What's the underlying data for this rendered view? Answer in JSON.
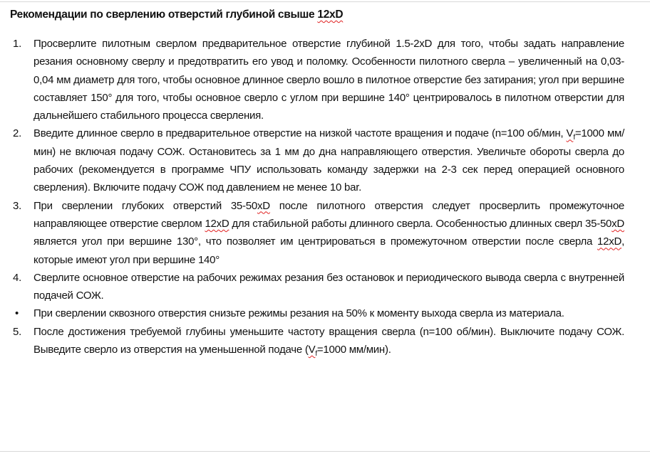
{
  "title": [
    {
      "t": "Рекомендации по сверлению отверстий глубиной свыше "
    },
    {
      "t": "12xD",
      "spell": true
    }
  ],
  "items": [
    {
      "marker": "1.",
      "segments": [
        {
          "t": "Просверлите пилотным сверлом предварительное отверстие глубиной 1.5-2xD для того, чтобы задать направление резания основному сверлу и предотвратить его увод и поломку. Особенности пилотного сверла – увеличенный на 0,03-0,04 мм диаметр для того, чтобы основное длинное сверло вошло в пилотное отверстие без затирания; угол при вершине составляет 150° для того, чтобы основное сверло с углом при вершине 140° центрировалось в пилотном отверстии для дальнейшего стабильного процесса сверления."
        }
      ]
    },
    {
      "marker": "2.",
      "segments": [
        {
          "t": "Введите длинное сверло в предварительное отверстие на низкой частоте вращения и подаче (n=100 об/мин, "
        },
        {
          "t": "V",
          "spell": true
        },
        {
          "t": "f",
          "sub": true
        },
        {
          "t": "=1000 мм/мин) не включая подачу СОЖ. Остановитесь за 1 мм до дна направляющего отверстия. Увеличьте обороты сверла до рабочих (рекомендуется в программе ЧПУ использовать команду задержки на 2-3 сек перед операцией основного сверления). Включите подачу СОЖ под давлением не менее 10 bar."
        }
      ]
    },
    {
      "marker": "3.",
      "segments": [
        {
          "t": "При сверлении глубоких отверстий 35-50"
        },
        {
          "t": "xD",
          "spell": true
        },
        {
          "t": " после пилотного отверстия следует просверлить промежуточное направляющее отверстие сверлом "
        },
        {
          "t": "12xD",
          "spell": true
        },
        {
          "t": " для стабильной работы длинного сверла. Особенностью длинных сверл 35-50"
        },
        {
          "t": "xD",
          "spell": true
        },
        {
          "t": " является угол при вершине 130°, что позволяет им центрироваться в промежуточном отверстии после сверла "
        },
        {
          "t": "12xD",
          "spell": true
        },
        {
          "t": ", которые имеют угол при вершине 140°"
        }
      ]
    },
    {
      "marker": "4.",
      "segments": [
        {
          "t": "Сверлите основное отверстие на рабочих режимах резания без остановок и периодического вывода сверла с внутренней подачей СОЖ."
        }
      ]
    },
    {
      "marker": "•",
      "bullet": true,
      "segments": [
        {
          "t": "При сверлении сквозного отверстия снизьте режимы резания на 50% к моменту выхода сверла из материала."
        }
      ]
    },
    {
      "marker": "5.",
      "segments": [
        {
          "t": "После достижения требуемой глубины уменьшите частоту вращения сверла (n=100 об/мин). Выключите подачу СОЖ. Выведите сверло из отверстия на уменьшенной подаче ("
        },
        {
          "t": "V",
          "spell": true
        },
        {
          "t": "f",
          "sub": true
        },
        {
          "t": "=1000 мм/мин)."
        }
      ]
    }
  ]
}
